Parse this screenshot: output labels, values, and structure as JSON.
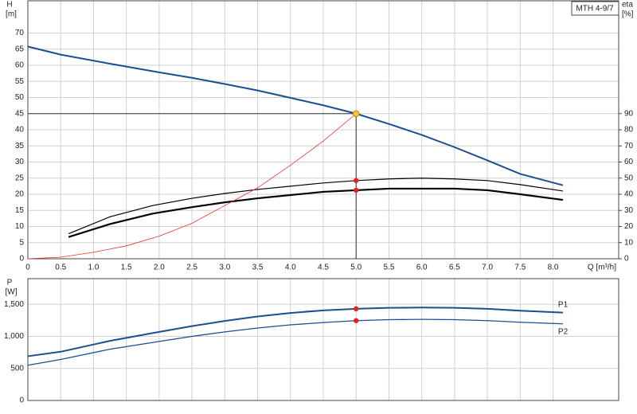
{
  "chart_data": [
    {
      "type": "line",
      "title": "MTH 4-9/7",
      "ylabel": "H",
      "yunit": "[m]",
      "y2label": "eta",
      "y2unit": "[%]",
      "xlabel": "Q [m³/h]",
      "xlim": [
        0,
        9
      ],
      "ylim": [
        0,
        80
      ],
      "y2lim": [
        0,
        160
      ],
      "grid": true,
      "xticks": [
        0,
        0.5,
        {
          "value": 1,
          "label": "1.0"
        },
        1.5,
        {
          "value": 2,
          "label": "2.0"
        },
        2.5,
        {
          "value": 3,
          "label": "3.0"
        },
        3.5,
        {
          "value": 4,
          "label": "4.0"
        },
        4.5,
        {
          "value": 5,
          "label": "5.0"
        },
        5.5,
        {
          "value": 6,
          "label": "6.0"
        },
        6.5,
        {
          "value": 7,
          "label": "7.0"
        },
        7.5,
        {
          "value": 8,
          "label": "8.0"
        }
      ],
      "yticks": [
        0,
        5,
        10,
        15,
        20,
        25,
        30,
        35,
        40,
        45,
        50,
        55,
        60,
        65,
        70
      ],
      "y2ticks": [
        0,
        10,
        20,
        30,
        40,
        50,
        60,
        70,
        80,
        90
      ],
      "operating_point": {
        "x": 5,
        "y": 45
      },
      "series": [
        {
          "color": "#1b4f8f",
          "width": 2,
          "x": [
            0,
            0.5,
            1.25,
            2,
            2.5,
            3,
            3.5,
            4,
            4.5,
            5,
            5.5,
            6,
            6.5,
            7,
            7.5,
            8.15
          ],
          "values": [
            65.8,
            63.3,
            60.5,
            57.8,
            56.1,
            54.2,
            52.2,
            49.9,
            47.6,
            45,
            41.8,
            38.4,
            34.6,
            30.5,
            26.3,
            22.8
          ]
        },
        {
          "color": "#000000",
          "width": 1.2,
          "axis": "y2",
          "x": [
            0.62,
            1.25,
            1.9,
            2.5,
            3,
            3.5,
            4,
            4.5,
            5,
            5.5,
            6,
            6.5,
            7,
            7.5,
            8.15
          ],
          "values": [
            15.5,
            26,
            33,
            37.5,
            40.5,
            43,
            45,
            47,
            48.5,
            49.5,
            50,
            49.5,
            48.5,
            46,
            42
          ]
        },
        {
          "color": "#000000",
          "width": 2.2,
          "axis": "y2",
          "x": [
            0.62,
            1.25,
            1.9,
            2.5,
            3,
            3.5,
            4,
            4.5,
            5,
            5.5,
            6,
            6.5,
            7,
            7.5,
            8.15
          ],
          "values": [
            13.5,
            21.5,
            28,
            32,
            35,
            37.5,
            39.5,
            41.5,
            42.5,
            43.5,
            43.5,
            43.5,
            42.5,
            40,
            36.5
          ]
        },
        {
          "color": "#f03030",
          "width": 0.8,
          "x": [
            0,
            0.5,
            1,
            1.5,
            2,
            2.5,
            3,
            3.5,
            4,
            4.5,
            5
          ],
          "values": [
            0,
            0.5,
            2,
            4,
            7,
            11,
            16.5,
            22,
            29,
            36.5,
            45
          ]
        }
      ]
    },
    {
      "type": "line",
      "ylabel": "P",
      "yunit": "[W]",
      "xlim": [
        0,
        9
      ],
      "ylim": [
        0,
        1900
      ],
      "grid": true,
      "yticks": [
        0,
        500,
        {
          "value": 1000,
          "label": "1,000"
        },
        {
          "value": 1500,
          "label": "1,500"
        }
      ],
      "operating_point": {
        "x": 5
      },
      "series": [
        {
          "name": "P1",
          "color": "#1b4f8f",
          "width": 2,
          "x": [
            0,
            0.5,
            1.25,
            2,
            2.5,
            3,
            3.5,
            4,
            4.5,
            5,
            5.5,
            6,
            6.5,
            7,
            7.5,
            8.15
          ],
          "values": [
            690,
            760,
            930,
            1070,
            1160,
            1240,
            1310,
            1365,
            1405,
            1430,
            1445,
            1450,
            1445,
            1430,
            1400,
            1370
          ]
        },
        {
          "name": "P2",
          "color": "#1b4f8f",
          "width": 1.3,
          "x": [
            0,
            0.5,
            1.25,
            2,
            2.5,
            3,
            3.5,
            4,
            4.5,
            5,
            5.5,
            6,
            6.5,
            7,
            7.5,
            8.15
          ],
          "values": [
            550,
            640,
            800,
            920,
            1000,
            1070,
            1130,
            1180,
            1215,
            1245,
            1260,
            1265,
            1260,
            1245,
            1220,
            1195
          ]
        }
      ]
    }
  ]
}
